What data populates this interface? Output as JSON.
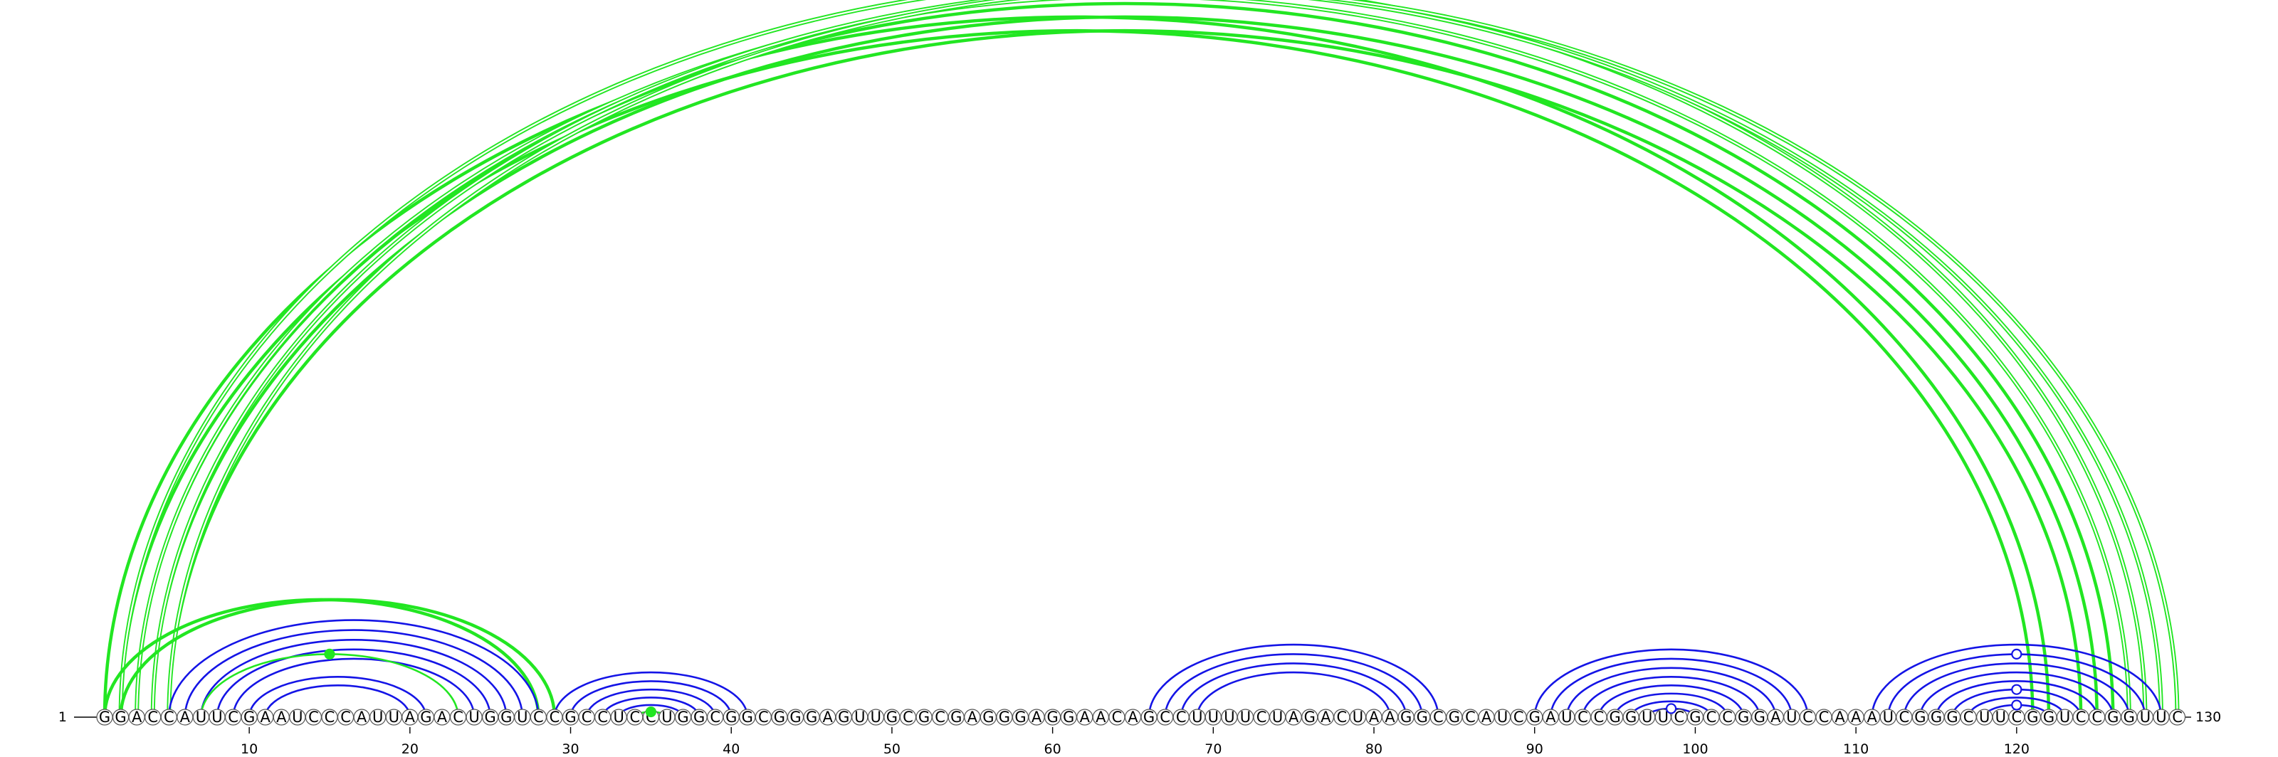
{
  "sequence": "GGACCAUUCGAAUCCCAUUAGACUGGUCCGCCUCCUGGCGGCGGGAGUUGCGCGAGGGAGGAACAGCCUUUUCUAGACUAAGGCGCAUCGAUCCGGUUCGCCGGAUCCAAAUCGGGCUUCGGUCCGGUUC",
  "labels": {
    "start": "1",
    "end": "130"
  },
  "ticks": [
    "10",
    "20",
    "30",
    "40",
    "50",
    "60",
    "70",
    "80",
    "90",
    "100",
    "110",
    "120"
  ],
  "tick_positions": [
    10,
    20,
    30,
    40,
    50,
    60,
    70,
    80,
    90,
    100,
    110,
    120
  ],
  "colors": {
    "blue": "#1414e6",
    "green": "#22e622",
    "node": "#555555"
  },
  "helices": [
    {
      "color": "green",
      "weight": "heavy",
      "pairs": [
        [
          1,
          122
        ],
        [
          2,
          121
        ],
        [
          3,
          126
        ],
        [
          4,
          125
        ],
        [
          5,
          124
        ]
      ]
    },
    {
      "color": "green",
      "weight": "double",
      "pairs": [
        [
          2,
          128
        ],
        [
          3,
          127
        ],
        [
          4,
          129
        ],
        [
          5,
          130
        ]
      ]
    },
    {
      "color": "green",
      "weight": "heavy",
      "pairs": [
        [
          1,
          28
        ],
        [
          2,
          29
        ]
      ]
    },
    {
      "color": "blue",
      "weight": "normal",
      "pairs": [
        [
          5,
          28
        ],
        [
          6,
          27
        ],
        [
          7,
          26
        ],
        [
          8,
          25
        ],
        [
          9,
          24
        ],
        [
          10,
          21
        ],
        [
          11,
          20
        ]
      ]
    },
    {
      "color": "green",
      "weight": "normal",
      "pairs": [
        [
          7,
          23
        ]
      ]
    },
    {
      "color": "blue",
      "weight": "normal",
      "pairs": [
        [
          29,
          41
        ],
        [
          30,
          40
        ],
        [
          31,
          39
        ],
        [
          32,
          38
        ],
        [
          33,
          37
        ]
      ]
    },
    {
      "color": "green",
      "weight": "normal",
      "pairs": [
        [
          34,
          36
        ]
      ]
    },
    {
      "color": "blue",
      "weight": "normal",
      "pairs": [
        [
          66,
          84
        ],
        [
          67,
          83
        ],
        [
          68,
          82
        ],
        [
          69,
          81
        ]
      ]
    },
    {
      "color": "blue",
      "weight": "normal",
      "pairs": [
        [
          90,
          107
        ],
        [
          91,
          106
        ],
        [
          92,
          105
        ],
        [
          93,
          104
        ],
        [
          94,
          103
        ],
        [
          95,
          102
        ],
        [
          96,
          101
        ],
        [
          97,
          100
        ]
      ]
    },
    {
      "color": "blue",
      "weight": "normal",
      "pairs": [
        [
          111,
          129
        ],
        [
          112,
          128
        ],
        [
          113,
          127
        ],
        [
          114,
          126
        ],
        [
          115,
          125
        ],
        [
          116,
          124
        ],
        [
          117,
          123
        ],
        [
          118,
          122
        ]
      ]
    }
  ],
  "markers": [
    {
      "pair": [
        1,
        130
      ],
      "color": "green",
      "filled": false
    },
    {
      "pair": [
        7,
        23
      ],
      "color": "green",
      "filled": true
    },
    {
      "pair": [
        34,
        36
      ],
      "color": "green",
      "filled": true
    },
    {
      "pair": [
        97,
        100
      ],
      "color": "blue",
      "filled": false
    },
    {
      "pair": [
        118,
        122
      ],
      "color": "blue",
      "filled": false
    },
    {
      "pair": [
        116,
        124
      ],
      "color": "blue",
      "filled": false
    },
    {
      "pair": [
        112,
        128
      ],
      "color": "blue",
      "filled": false
    }
  ]
}
